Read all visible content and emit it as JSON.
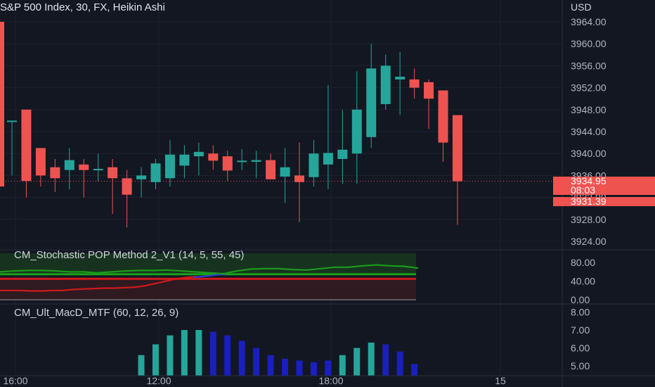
{
  "header": {
    "title": "S&P 500 Index, 30, FX, Heikin Ashi",
    "currency": "USD"
  },
  "last_price": {
    "value": "3934.95",
    "countdown": "08:03",
    "low_label": "3931.39"
  },
  "indicators": {
    "stoch_title": "CM_Stochastic POP Method 2_V1 (14, 5, 55, 45)",
    "macd_title": "CM_Ult_MacD_MTF (60, 12, 26, 9)"
  },
  "colors": {
    "background": "#131722",
    "up": "#26a69a",
    "down": "#ef5350",
    "stoch_green": "#1b9b1b",
    "stoch_red": "#d11a1a",
    "stoch_blue": "#2b3bd8",
    "macd_teal": "#26a69a",
    "macd_blue": "#1a1fbf"
  },
  "chart_data": [
    {
      "type": "candlestick",
      "title": "S&P 500 Index, 30, FX, Heikin Ashi",
      "y_ticks": [
        "3964.00",
        "3960.00",
        "3956.00",
        "3952.00",
        "3948.00",
        "3944.00",
        "3940.00",
        "3936.00",
        "3932.00",
        "3928.00",
        "3924.00"
      ],
      "ylim": [
        3923,
        3968
      ],
      "x_ticks": [
        "16:00",
        "12:00",
        "18:00",
        "15"
      ],
      "candles": [
        {
          "o": 3946,
          "h": 3946,
          "l": 3936,
          "c": 3946
        },
        {
          "o": 3948,
          "h": 3948,
          "l": 3932,
          "c": 3935
        },
        {
          "o": 3941,
          "h": 3941,
          "l": 3934,
          "c": 3936
        },
        {
          "o": 3937.5,
          "h": 3939,
          "l": 3933,
          "c": 3935.5
        },
        {
          "o": 3937,
          "h": 3941,
          "l": 3933.5,
          "c": 3938.8
        },
        {
          "o": 3938.0,
          "h": 3939,
          "l": 3932,
          "c": 3937.0
        },
        {
          "o": 3937,
          "h": 3940,
          "l": 3935,
          "c": 3937.2
        },
        {
          "o": 3937.5,
          "h": 3939,
          "l": 3929,
          "c": 3935.5
        },
        {
          "o": 3935.5,
          "h": 3937,
          "l": 3926.5,
          "c": 3932.5
        },
        {
          "o": 3935.3,
          "h": 3937.5,
          "l": 3932,
          "c": 3936.0
        },
        {
          "o": 3934.8,
          "h": 3939,
          "l": 3933.5,
          "c": 3938.2
        },
        {
          "o": 3935.5,
          "h": 3942.5,
          "l": 3934,
          "c": 3939.8
        },
        {
          "o": 3937.8,
          "h": 3941.5,
          "l": 3935.5,
          "c": 3939.8
        },
        {
          "o": 3939.5,
          "h": 3942,
          "l": 3936,
          "c": 3940.3
        },
        {
          "o": 3940.0,
          "h": 3941.5,
          "l": 3937,
          "c": 3938.7
        },
        {
          "o": 3939.5,
          "h": 3940.5,
          "l": 3935,
          "c": 3936.9
        },
        {
          "o": 3938.5,
          "h": 3940.8,
          "l": 3937,
          "c": 3938.7
        },
        {
          "o": 3938.5,
          "h": 3940.5,
          "l": 3935.5,
          "c": 3938.8
        },
        {
          "o": 3938.8,
          "h": 3940,
          "l": 3935.5,
          "c": 3935.3
        },
        {
          "o": 3935.8,
          "h": 3941,
          "l": 3931,
          "c": 3937.5
        },
        {
          "o": 3936.0,
          "h": 3942,
          "l": 3927.5,
          "c": 3934.8
        },
        {
          "o": 3935.7,
          "h": 3942.5,
          "l": 3934,
          "c": 3940.0
        },
        {
          "o": 3938.0,
          "h": 3952.5,
          "l": 3933.5,
          "c": 3940.1
        },
        {
          "o": 3939.0,
          "h": 3948,
          "l": 3934.5,
          "c": 3940.7
        },
        {
          "o": 3940.0,
          "h": 3955,
          "l": 3934.5,
          "c": 3948.0
        },
        {
          "o": 3943.0,
          "h": 3960,
          "l": 3941,
          "c": 3955.5
        },
        {
          "o": 3949.0,
          "h": 3958,
          "l": 3948,
          "c": 3956.0
        },
        {
          "o": 3953.5,
          "h": 3958.5,
          "l": 3947,
          "c": 3954.0
        },
        {
          "o": 3953.5,
          "h": 3955.5,
          "l": 3950,
          "c": 3952.0
        },
        {
          "o": 3953.0,
          "h": 3953.5,
          "l": 3944.5,
          "c": 3950.0
        },
        {
          "o": 3951.5,
          "h": 3951.5,
          "l": 3938.5,
          "c": 3942.0
        },
        {
          "o": 3947.0,
          "h": 3947,
          "l": 3927,
          "c": 3934.95
        }
      ]
    },
    {
      "type": "line",
      "title": "CM_Stochastic POP Method 2_V1 (14, 5, 55, 45)",
      "y_ticks": [
        "80.00",
        "40.00",
        "0.00"
      ],
      "ylim": [
        0,
        100
      ],
      "bands": [
        55,
        45
      ],
      "series": [
        {
          "color_key": "stoch_red",
          "values": [
            20,
            20,
            20,
            19,
            19,
            20,
            20,
            22,
            23,
            24,
            25,
            25,
            26,
            27,
            30,
            35,
            40,
            45,
            48,
            50
          ]
        },
        {
          "color_key": "stoch_green",
          "values": [
            60,
            62,
            63,
            63,
            62,
            60,
            60,
            58,
            60,
            62,
            63,
            63,
            64,
            62,
            60,
            58,
            56,
            62,
            66,
            67,
            67,
            65,
            64,
            67,
            70,
            70,
            73,
            75,
            73,
            72,
            68
          ]
        }
      ]
    },
    {
      "type": "bar",
      "title": "CM_Ult_MacD_MTF (60, 12, 26, 9)",
      "y_ticks": [
        "8.00",
        "7.00",
        "6.00",
        "5.00"
      ],
      "ylim": [
        4.7,
        8.2
      ],
      "values": [
        5.6,
        6.2,
        6.7,
        7.0,
        7.0,
        6.9,
        6.7,
        6.4,
        6.0,
        5.6,
        5.4,
        5.3,
        5.2,
        5.3,
        5.6,
        6.0,
        6.3,
        6.2,
        5.8,
        5.1
      ],
      "colors": [
        "macd_teal",
        "macd_teal",
        "macd_teal",
        "macd_teal",
        "macd_teal",
        "macd_blue",
        "macd_blue",
        "macd_blue",
        "macd_blue",
        "macd_blue",
        "macd_blue",
        "macd_blue",
        "macd_blue",
        "macd_blue",
        "macd_teal",
        "macd_teal",
        "macd_teal",
        "macd_blue",
        "macd_blue",
        "macd_blue"
      ]
    }
  ]
}
